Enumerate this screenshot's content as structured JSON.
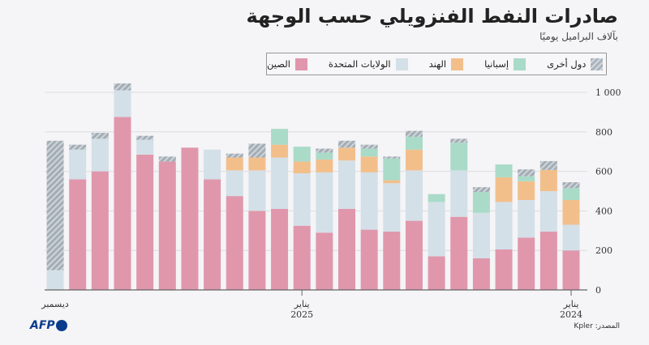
{
  "header": {
    "title": "صادرات النفط الفنزويلي حسب الوجهة",
    "subtitle": "بآلاف البراميل يوميًا"
  },
  "footer": {
    "source": "المصدر: Kpler",
    "logo": "AFP"
  },
  "chart_data": {
    "type": "bar",
    "stacked": true,
    "title": "صادرات النفط الفنزويلي حسب الوجهة",
    "subtitle": "بآلاف البراميل يوميًا",
    "x_direction": "right-to-left",
    "categories": [
      "2024-01",
      "2024-02",
      "2024-03",
      "2024-04",
      "2024-05",
      "2024-06",
      "2024-07",
      "2024-08",
      "2024-09",
      "2024-10",
      "2024-11",
      "2024-12",
      "2025-01",
      "2025-02",
      "2025-03",
      "2025-04",
      "2025-05",
      "2025-06",
      "2025-07",
      "2025-08",
      "2025-09",
      "2025-10",
      "2025-11",
      "2025-12"
    ],
    "x_tick_labels": [
      {
        "category": "2024-01",
        "month": "يناير",
        "year": "2024"
      },
      {
        "category": "2025-01",
        "month": "يناير",
        "year": "2025"
      },
      {
        "category": "2025-12",
        "month": "ديسمبر",
        "year": ""
      }
    ],
    "ylim": [
      0,
      1000
    ],
    "y_ticks": [
      0,
      200,
      400,
      600,
      800,
      1000
    ],
    "y_tick_labels": [
      "0",
      "200",
      "400",
      "600",
      "800",
      "1 000"
    ],
    "y_axis_side": "right",
    "grid": true,
    "legend_placement": "top",
    "series": [
      {
        "name": "الصين",
        "color": "#e097ac",
        "values": [
          200,
          295,
          265,
          205,
          160,
          370,
          170,
          350,
          295,
          305,
          410,
          290,
          325,
          410,
          400,
          475,
          560,
          720,
          650,
          685,
          875,
          600,
          560,
          0
        ]
      },
      {
        "name": "الولايات المتحدة",
        "color": "#d3e0e8",
        "values": [
          130,
          205,
          190,
          240,
          230,
          235,
          275,
          255,
          245,
          290,
          245,
          305,
          265,
          260,
          205,
          130,
          150,
          0,
          0,
          75,
          135,
          165,
          150,
          100
        ]
      },
      {
        "name": "الهند",
        "color": "#f2bf8b",
        "values": [
          125,
          107,
          95,
          125,
          0,
          0,
          0,
          105,
          15,
          80,
          65,
          65,
          60,
          65,
          65,
          65,
          0,
          0,
          0,
          0,
          0,
          0,
          0,
          0
        ]
      },
      {
        "name": "إسبانيا",
        "color": "#a9dbc8",
        "values": [
          60,
          0,
          25,
          65,
          105,
          140,
          40,
          65,
          110,
          40,
          0,
          35,
          75,
          80,
          0,
          0,
          0,
          0,
          0,
          0,
          0,
          0,
          0,
          0
        ]
      },
      {
        "name": "دول أخرى",
        "color": "#aab3bb",
        "pattern": "hatched",
        "values": [
          30,
          45,
          35,
          0,
          25,
          20,
          0,
          30,
          10,
          20,
          35,
          20,
          0,
          0,
          70,
          20,
          0,
          0,
          25,
          20,
          35,
          30,
          25,
          655
        ]
      }
    ]
  }
}
